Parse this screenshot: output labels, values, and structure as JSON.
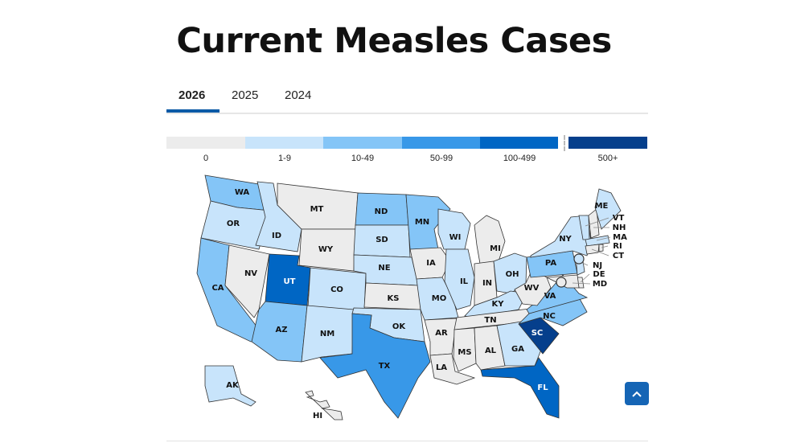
{
  "title": "Current Measles Cases",
  "tabs": [
    {
      "label": "2026",
      "active": true
    },
    {
      "label": "2025",
      "active": false
    },
    {
      "label": "2024",
      "active": false
    }
  ],
  "legend": [
    {
      "label": "0",
      "color": "#ececec"
    },
    {
      "label": "1-9",
      "color": "#c8e4fb"
    },
    {
      "label": "10-49",
      "color": "#84c5f7"
    },
    {
      "label": "50-99",
      "color": "#3898e8"
    },
    {
      "label": "100-499",
      "color": "#0066c4"
    },
    {
      "label": "500+",
      "color": "#053f8c"
    }
  ],
  "states": [
    {
      "abbr": "WA",
      "cat": 2
    },
    {
      "abbr": "OR",
      "cat": 1
    },
    {
      "abbr": "CA",
      "cat": 2
    },
    {
      "abbr": "NV",
      "cat": 0
    },
    {
      "abbr": "ID",
      "cat": 1
    },
    {
      "abbr": "MT",
      "cat": 0
    },
    {
      "abbr": "WY",
      "cat": 0
    },
    {
      "abbr": "UT",
      "cat": 4
    },
    {
      "abbr": "CO",
      "cat": 1
    },
    {
      "abbr": "AZ",
      "cat": 2
    },
    {
      "abbr": "NM",
      "cat": 1
    },
    {
      "abbr": "ND",
      "cat": 2
    },
    {
      "abbr": "SD",
      "cat": 1
    },
    {
      "abbr": "NE",
      "cat": 1
    },
    {
      "abbr": "KS",
      "cat": 0
    },
    {
      "abbr": "OK",
      "cat": 1
    },
    {
      "abbr": "TX",
      "cat": 3
    },
    {
      "abbr": "MN",
      "cat": 2
    },
    {
      "abbr": "IA",
      "cat": 0
    },
    {
      "abbr": "MO",
      "cat": 1
    },
    {
      "abbr": "AR",
      "cat": 0
    },
    {
      "abbr": "LA",
      "cat": 0
    },
    {
      "abbr": "WI",
      "cat": 1
    },
    {
      "abbr": "IL",
      "cat": 1
    },
    {
      "abbr": "MI",
      "cat": 0
    },
    {
      "abbr": "IN",
      "cat": 0
    },
    {
      "abbr": "OH",
      "cat": 1
    },
    {
      "abbr": "KY",
      "cat": 1
    },
    {
      "abbr": "TN",
      "cat": 0
    },
    {
      "abbr": "MS",
      "cat": 0
    },
    {
      "abbr": "AL",
      "cat": 0
    },
    {
      "abbr": "GA",
      "cat": 1
    },
    {
      "abbr": "FL",
      "cat": 4
    },
    {
      "abbr": "SC",
      "cat": 5
    },
    {
      "abbr": "NC",
      "cat": 2
    },
    {
      "abbr": "VA",
      "cat": 2
    },
    {
      "abbr": "WV",
      "cat": 0
    },
    {
      "abbr": "PA",
      "cat": 2
    },
    {
      "abbr": "NY",
      "cat": 1
    },
    {
      "abbr": "VT",
      "cat": 1
    },
    {
      "abbr": "NH",
      "cat": 0
    },
    {
      "abbr": "ME",
      "cat": 1
    },
    {
      "abbr": "MA",
      "cat": 1
    },
    {
      "abbr": "CT",
      "cat": 0
    },
    {
      "abbr": "RI",
      "cat": 0
    },
    {
      "abbr": "NJ",
      "cat": 1
    },
    {
      "abbr": "DE",
      "cat": 0
    },
    {
      "abbr": "MD",
      "cat": 0
    },
    {
      "abbr": "AK",
      "cat": 1
    },
    {
      "abbr": "HI",
      "cat": 0
    }
  ],
  "scroll_top_icon": "chevron-up-icon"
}
